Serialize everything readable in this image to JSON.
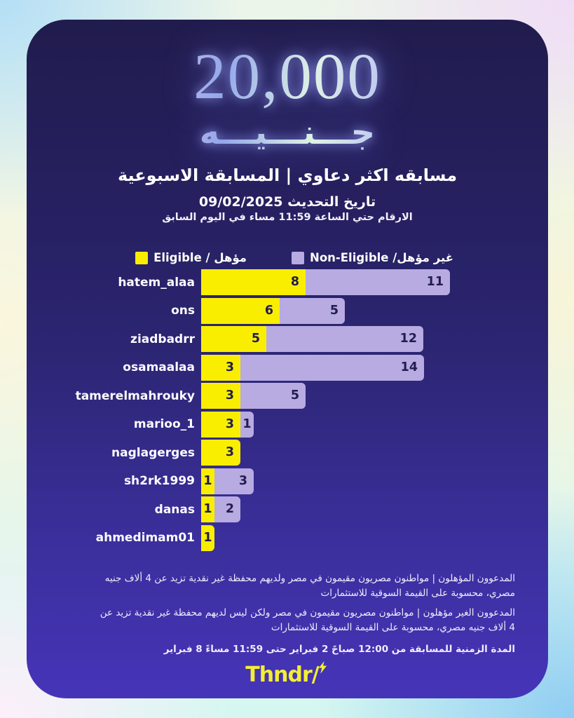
{
  "prize": {
    "amount": "20,000",
    "currency_word": "جـــنـــيـــه"
  },
  "header": {
    "title": "مسابقه اكثر دعاوي  |  المسابقة الاسبوعية",
    "update_date": "تاريخ التحديث 09/02/2025",
    "cutoff_note": "الارقام حتي الساعة 11:59 مساء في اليوم السابق"
  },
  "legend": {
    "eligible": {
      "label": "مؤهل / Eligible",
      "color": "#F9EE00"
    },
    "non_eligible": {
      "label": "غير مؤهل/ Non-Eligible",
      "color": "#B7ABE2"
    }
  },
  "chart_data": {
    "type": "bar",
    "orientation": "horizontal",
    "stacked": true,
    "categories": [
      "hatem_alaa",
      "ons",
      "ziadbadrr",
      "osamaalaa",
      "tamerelmahrouky",
      "marioo_1",
      "naglagerges",
      "sh2rk1999",
      "danas",
      "ahmedimam01"
    ],
    "series": [
      {
        "name": "Eligible",
        "color": "#F9EE00",
        "values": [
          8,
          6,
          5,
          3,
          3,
          3,
          3,
          1,
          1,
          1
        ]
      },
      {
        "name": "Non-Eligible",
        "color": "#B7ABE2",
        "values": [
          11,
          5,
          12,
          14,
          5,
          1,
          0,
          3,
          2,
          0
        ]
      }
    ],
    "xlim": [
      0,
      19
    ],
    "value_labels": true,
    "legend_position": "top-right",
    "grid": false,
    "value_label_color": "#221D4E"
  },
  "footnotes": [
    "المدعوون المؤهلون | مواطنون مصريون مقيمون في مصر ولديهم محفظة غير نقدية تزيد عن 4 ألاف جنيه مصري، محسوبة على القيمة السوقية للاستثمارات",
    "المدعوون الغير مؤهلون | مواطنون مصريون مقيمون في مصر ولكن ليس لديهم محفظة غير نقدية تزيد عن 4 ألاف جنيه مصري، محسوبة على القيمة السوقية للاستثمارات",
    "المدة الزمنية للمسابقة من 12:00 صباحً 2 فبراير حتى 11:59 مساءً 8 فبراير"
  ],
  "logo": {
    "text": "Thndr/"
  }
}
